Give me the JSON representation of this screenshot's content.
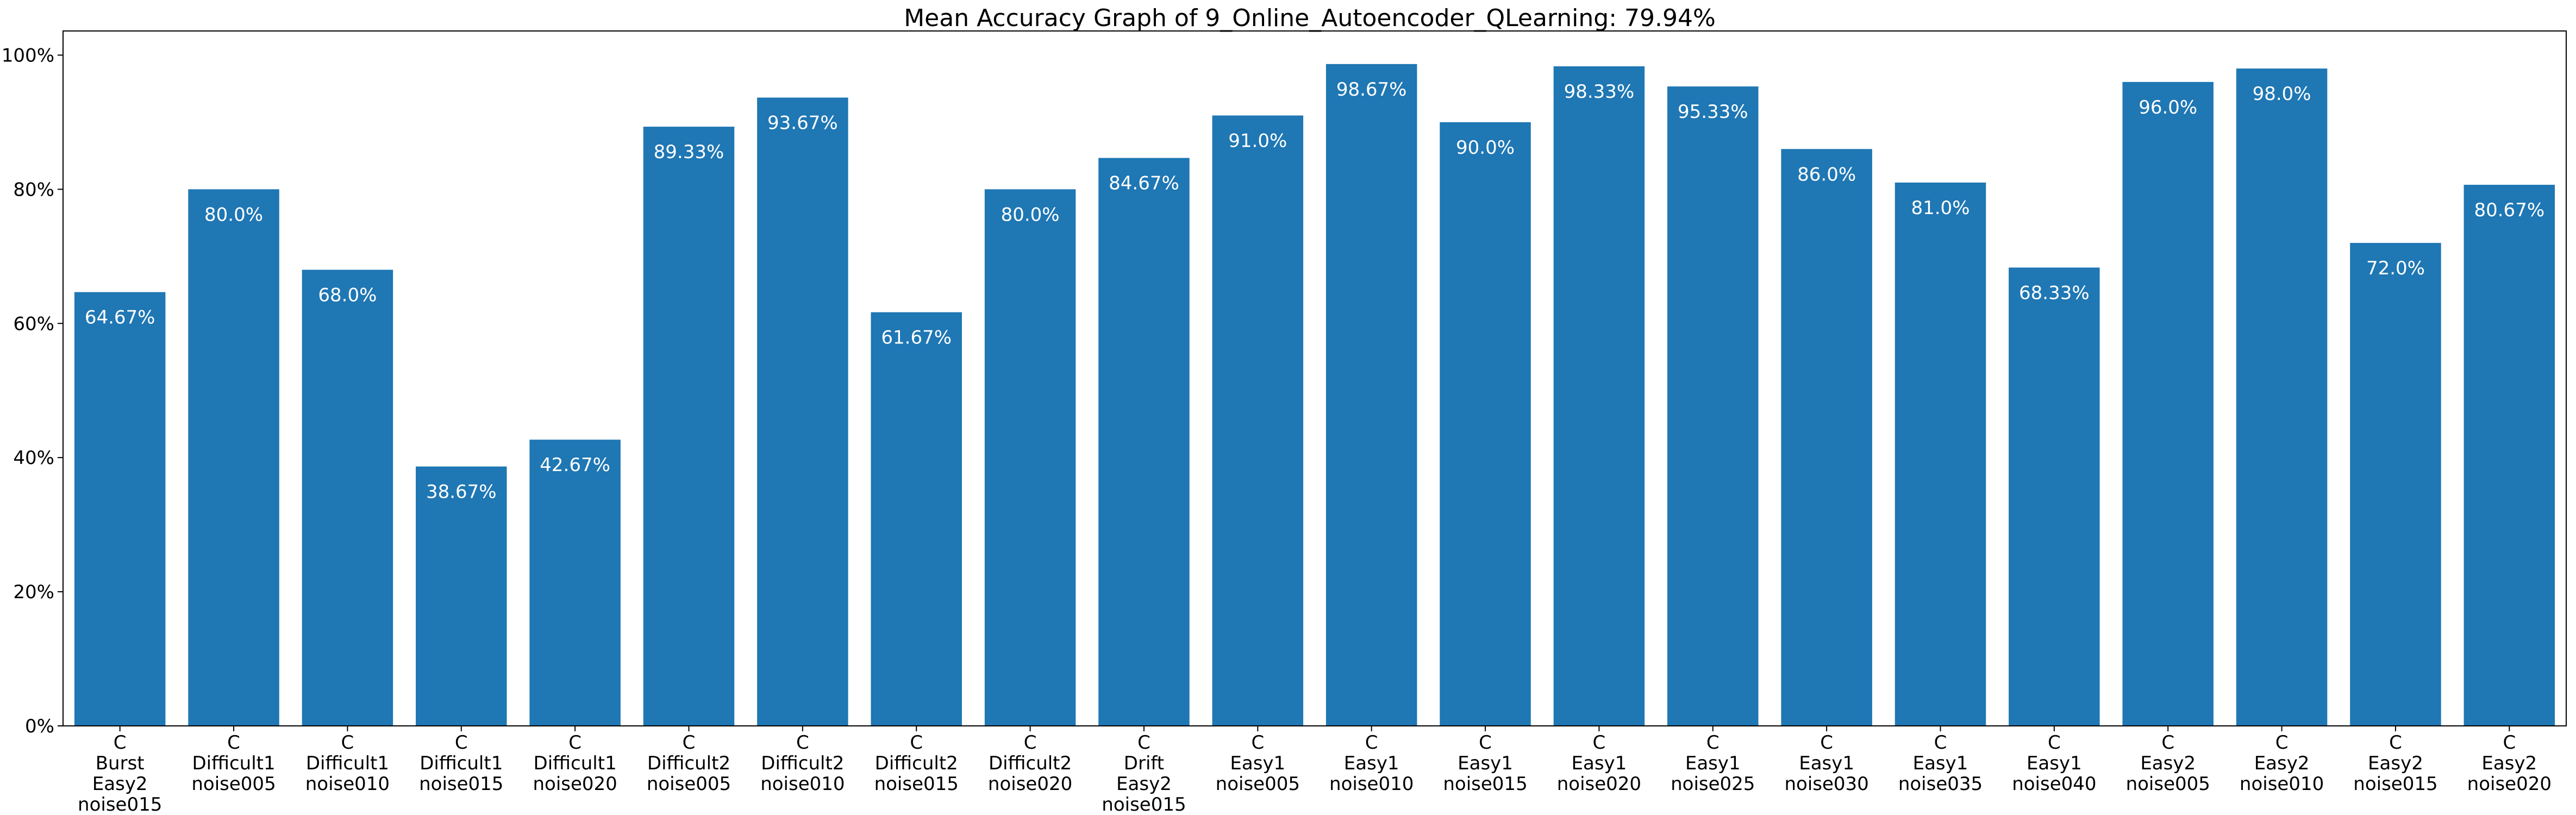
{
  "chart_data": {
    "type": "bar",
    "title": "Mean Accuracy Graph of 9_Online_Autoencoder_QLearning: 79.94%",
    "xlabel": "",
    "ylabel": "",
    "ylim": [
      0,
      103.6
    ],
    "yticks": [
      0,
      20,
      40,
      60,
      80,
      100
    ],
    "ytick_labels": [
      "0%",
      "20%",
      "40%",
      "60%",
      "80%",
      "100%"
    ],
    "grid": false,
    "bar_color": "#1f77b4",
    "label_color": "#ffffff",
    "categories": [
      [
        "C",
        "Burst",
        "Easy2",
        "noise015"
      ],
      [
        "C",
        "Difficult1",
        "noise005"
      ],
      [
        "C",
        "Difficult1",
        "noise010"
      ],
      [
        "C",
        "Difficult1",
        "noise015"
      ],
      [
        "C",
        "Difficult1",
        "noise020"
      ],
      [
        "C",
        "Difficult2",
        "noise005"
      ],
      [
        "C",
        "Difficult2",
        "noise010"
      ],
      [
        "C",
        "Difficult2",
        "noise015"
      ],
      [
        "C",
        "Difficult2",
        "noise020"
      ],
      [
        "C",
        "Drift",
        "Easy2",
        "noise015"
      ],
      [
        "C",
        "Easy1",
        "noise005"
      ],
      [
        "C",
        "Easy1",
        "noise010"
      ],
      [
        "C",
        "Easy1",
        "noise015"
      ],
      [
        "C",
        "Easy1",
        "noise020"
      ],
      [
        "C",
        "Easy1",
        "noise025"
      ],
      [
        "C",
        "Easy1",
        "noise030"
      ],
      [
        "C",
        "Easy1",
        "noise035"
      ],
      [
        "C",
        "Easy1",
        "noise040"
      ],
      [
        "C",
        "Easy2",
        "noise005"
      ],
      [
        "C",
        "Easy2",
        "noise010"
      ],
      [
        "C",
        "Easy2",
        "noise015"
      ],
      [
        "C",
        "Easy2",
        "noise020"
      ]
    ],
    "values": [
      64.67,
      80.0,
      68.0,
      38.67,
      42.67,
      89.33,
      93.67,
      61.67,
      80.0,
      84.67,
      91.0,
      98.67,
      90.0,
      98.33,
      95.33,
      86.0,
      81.0,
      68.33,
      96.0,
      98.0,
      72.0,
      80.67
    ],
    "data_labels": [
      "64.67%",
      "80.0%",
      "68.0%",
      "38.67%",
      "42.67%",
      "89.33%",
      "93.67%",
      "61.67%",
      "80.0%",
      "84.67%",
      "91.0%",
      "98.67%",
      "90.0%",
      "98.33%",
      "95.33%",
      "86.0%",
      "81.0%",
      "68.33%",
      "96.0%",
      "98.0%",
      "72.0%",
      "80.67%"
    ]
  }
}
